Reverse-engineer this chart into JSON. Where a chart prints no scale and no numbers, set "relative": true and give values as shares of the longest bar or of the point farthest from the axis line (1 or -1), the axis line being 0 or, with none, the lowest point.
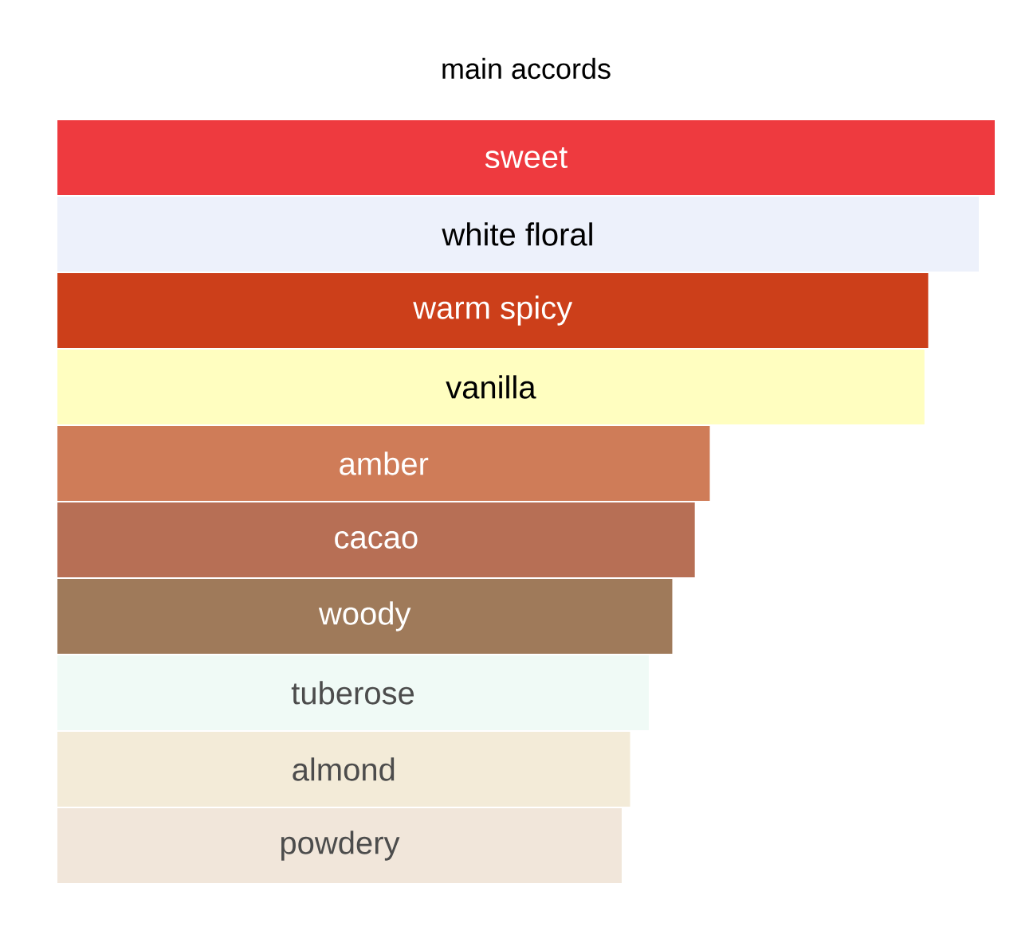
{
  "chart_data": {
    "type": "bar",
    "orientation": "horizontal",
    "relative": true,
    "title": "main accords",
    "categories": [
      "sweet",
      "white floral",
      "warm spicy",
      "vanilla",
      "amber",
      "cacao",
      "woody",
      "tuberose",
      "almond",
      "powdery"
    ],
    "values": [
      1,
      0.983,
      0.929,
      0.925,
      0.696,
      0.68,
      0.656,
      0.631,
      0.611,
      0.602
    ],
    "colors": [
      "#ee3a3f",
      "#edf1fb",
      "#cc3f1a",
      "#fffec0",
      "#cf7c58",
      "#b76f55",
      "#9f7a5a",
      "#f0faf6",
      "#f3ebd8",
      "#f1e6da"
    ]
  }
}
